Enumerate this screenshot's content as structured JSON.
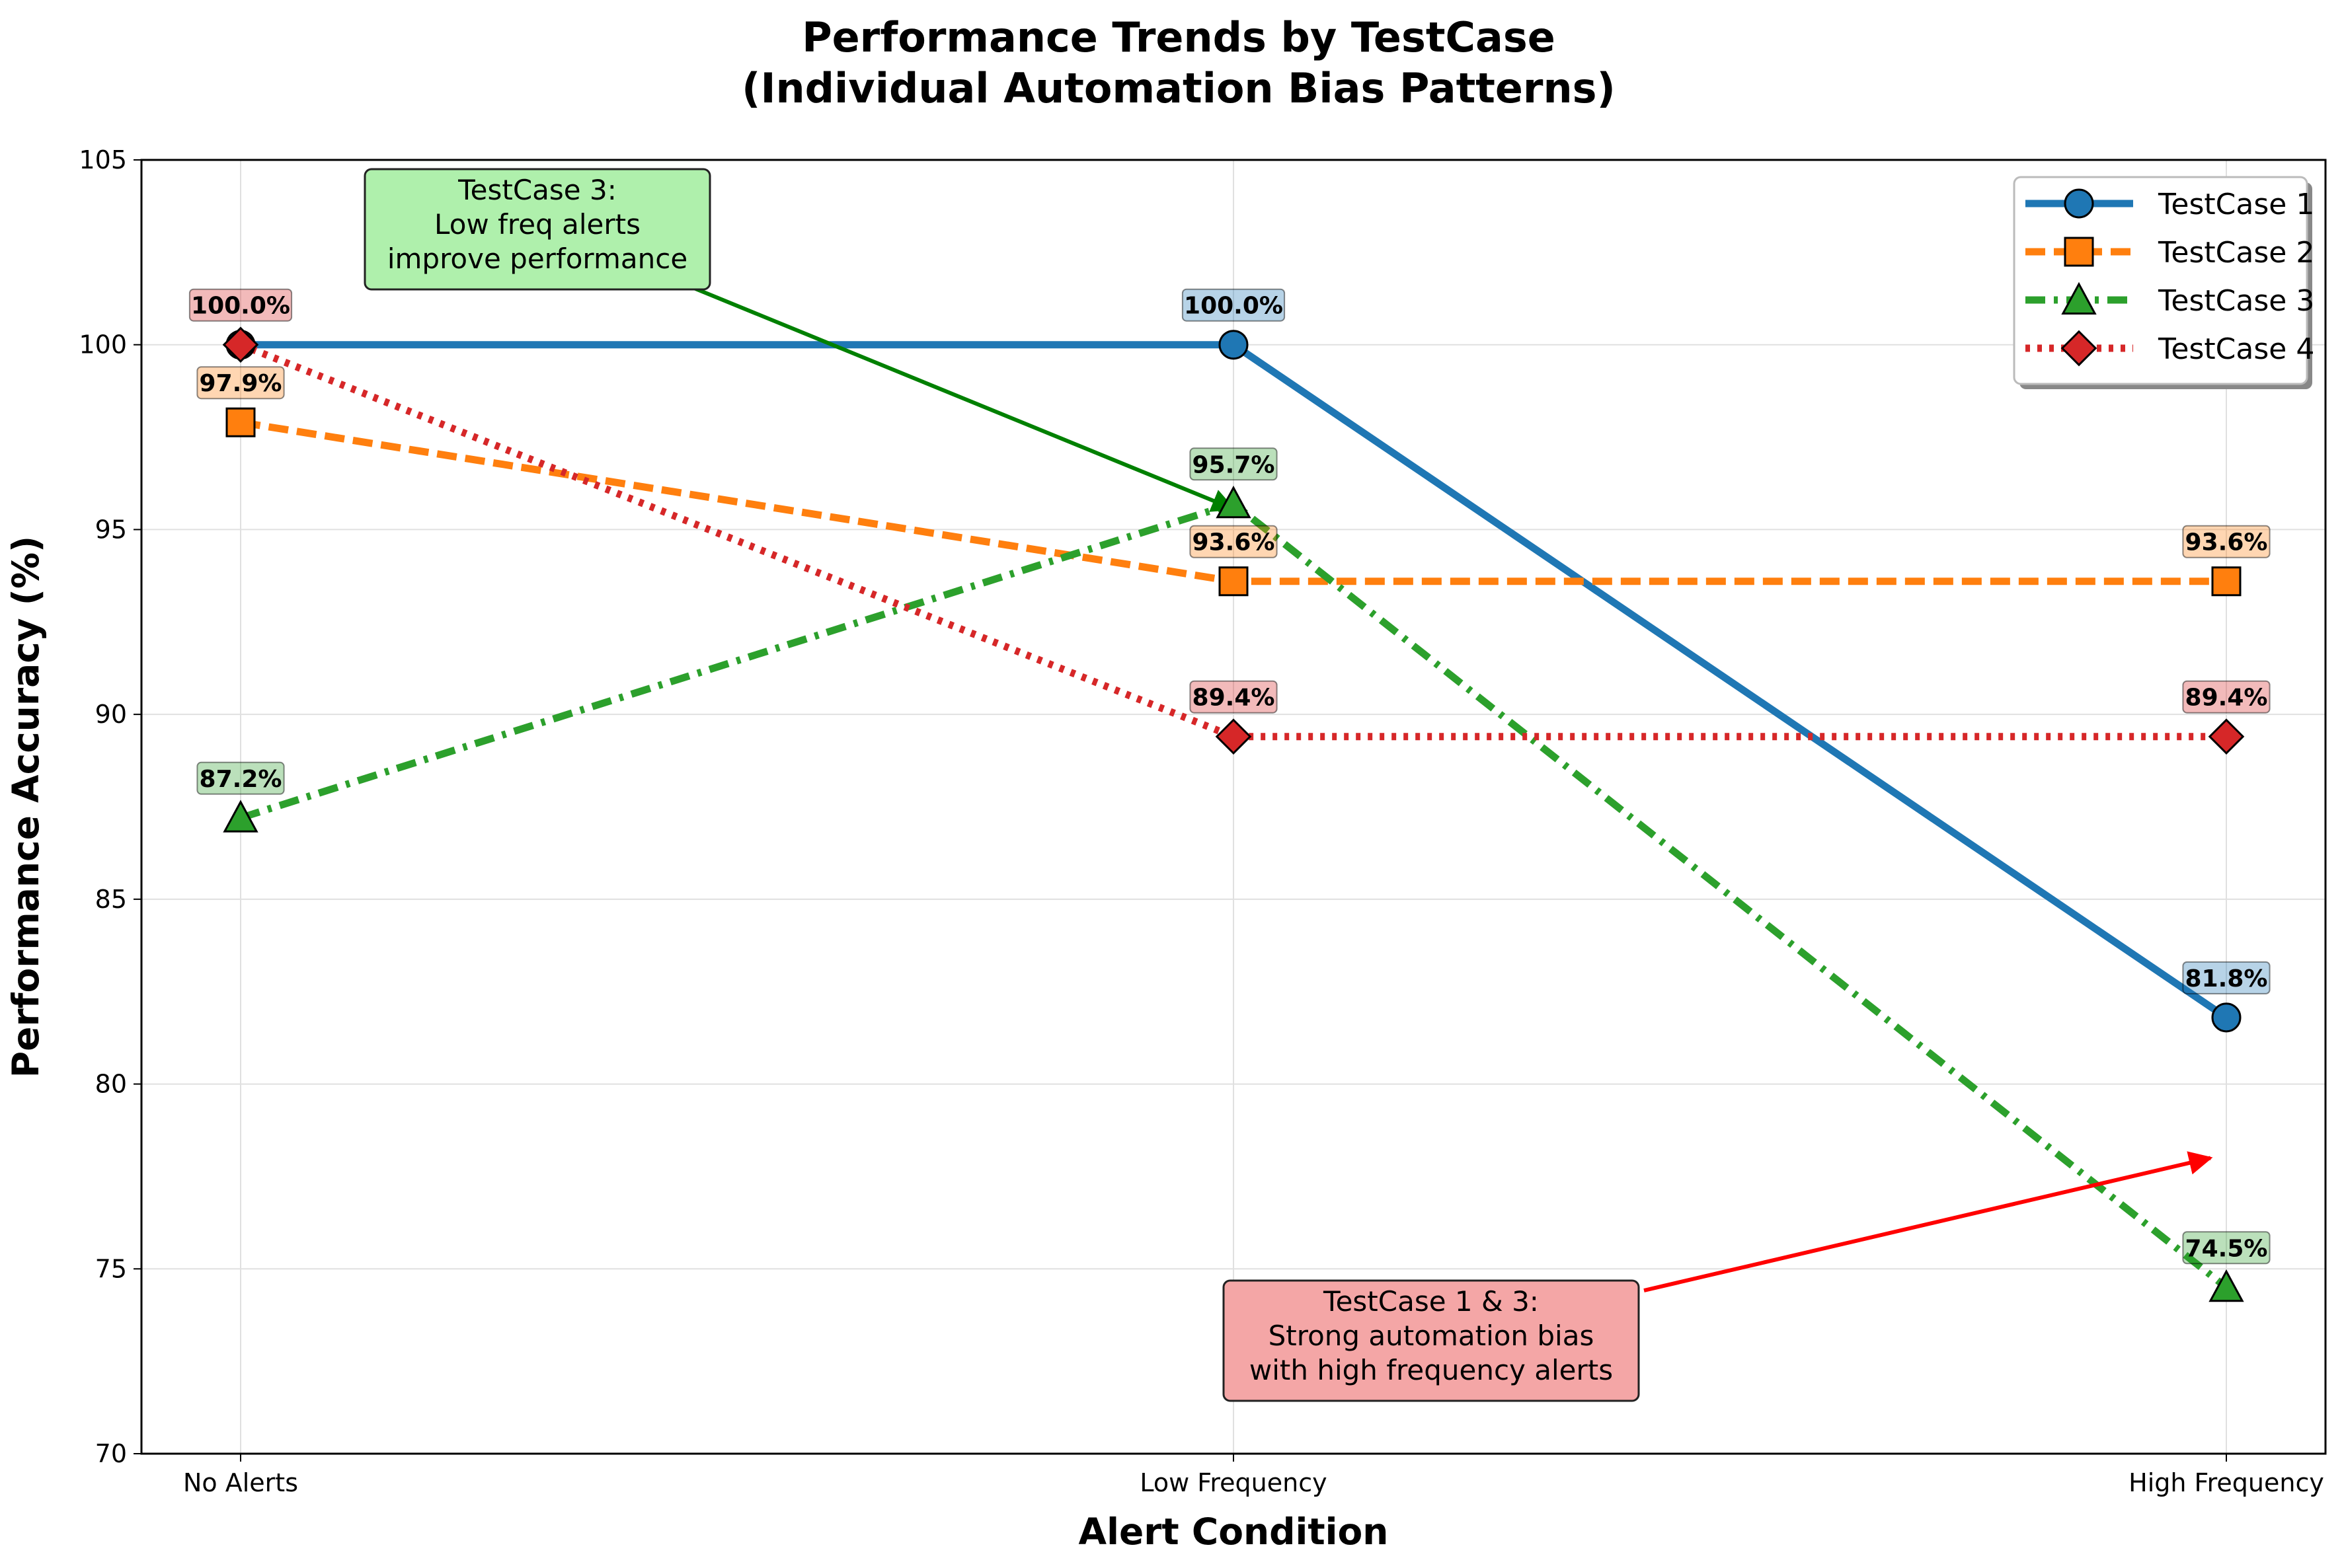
{
  "chart_data": {
    "type": "line",
    "title": "Performance Trends by TestCase",
    "subtitle": "(Individual Automation Bias Patterns)",
    "xlabel": "Alert Condition",
    "ylabel": "Performance Accuracy (%)",
    "categories": [
      "No Alerts",
      "Low Frequency",
      "High Frequency"
    ],
    "ylim": [
      70,
      105
    ],
    "yticks": [
      70,
      75,
      80,
      85,
      90,
      95,
      100,
      105
    ],
    "grid": true,
    "legend_position": "top-right",
    "series": [
      {
        "name": "TestCase 1",
        "values": [
          100.0,
          100.0,
          81.8
        ],
        "labels": [
          "",
          "100.0%",
          "81.8%"
        ],
        "color": "#1f77b4",
        "marker": "circle",
        "dash": "solid"
      },
      {
        "name": "TestCase 2",
        "values": [
          97.9,
          93.6,
          93.6
        ],
        "labels": [
          "97.9%",
          "93.6%",
          "93.6%"
        ],
        "color": "#ff7f0e",
        "marker": "square",
        "dash": "dashed"
      },
      {
        "name": "TestCase 3",
        "values": [
          87.2,
          95.7,
          74.5
        ],
        "labels": [
          "87.2%",
          "95.7%",
          "74.5%"
        ],
        "color": "#2ca02c",
        "marker": "triangle",
        "dash": "dashdot"
      },
      {
        "name": "TestCase 4",
        "values": [
          100.0,
          89.4,
          89.4
        ],
        "labels": [
          "100.0%",
          "89.4%",
          "89.4%"
        ],
        "color": "#d62728",
        "marker": "diamond",
        "dash": "dotted"
      }
    ],
    "annotations": [
      {
        "lines": [
          "TestCase 3:",
          "Low freq alerts",
          "improve performance"
        ],
        "target_category": "Low Frequency",
        "target_value": 95.7,
        "box_color": "#aff0ac",
        "arrow_color": "#008000"
      },
      {
        "lines": [
          "TestCase 1 & 3:",
          "Strong automation bias",
          "with high frequency alerts"
        ],
        "target_category": "High Frequency",
        "target_value": 78.0,
        "box_color": "#f4a6a6",
        "arrow_color": "#ff0000"
      }
    ]
  }
}
